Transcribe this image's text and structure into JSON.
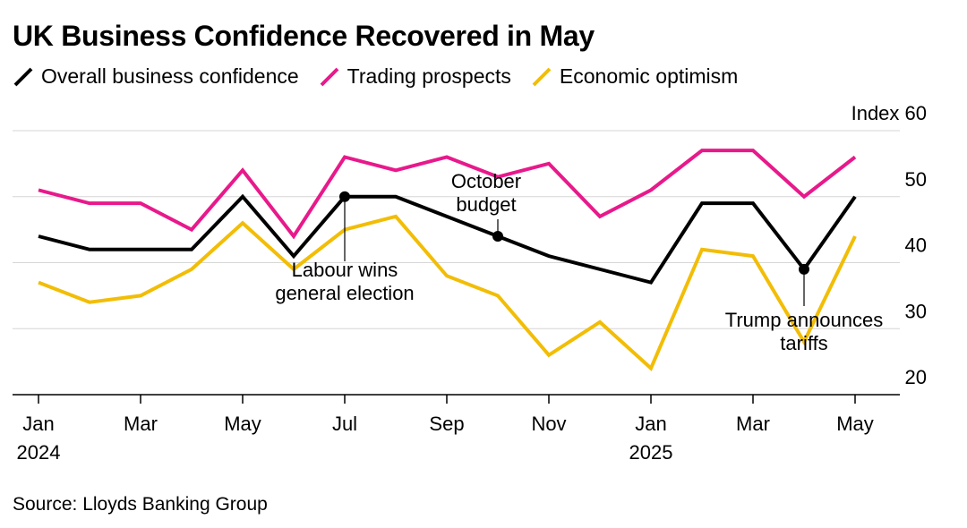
{
  "header": {
    "title": "UK Business Confidence Recovered in May"
  },
  "footer": {
    "source": "Source: Lloyds Banking Group"
  },
  "chart_data": {
    "type": "line",
    "title": "UK Business Confidence Recovered in May",
    "x": [
      "2024-01",
      "2024-02",
      "2024-03",
      "2024-04",
      "2024-05",
      "2024-06",
      "2024-07",
      "2024-08",
      "2024-09",
      "2024-10",
      "2024-11",
      "2024-12",
      "2025-01",
      "2025-02",
      "2025-03",
      "2025-04",
      "2025-05"
    ],
    "x_tick_labels": [
      {
        "month": "Jan",
        "year": "2024"
      },
      {
        "month": "Mar",
        "year": ""
      },
      {
        "month": "May",
        "year": ""
      },
      {
        "month": "Jul",
        "year": ""
      },
      {
        "month": "Sep",
        "year": ""
      },
      {
        "month": "Nov",
        "year": ""
      },
      {
        "month": "Jan",
        "year": "2025"
      },
      {
        "month": "Mar",
        "year": ""
      },
      {
        "month": "May",
        "year": ""
      }
    ],
    "y_unit_label": "Index",
    "y_ticks": [
      20,
      30,
      40,
      50,
      60
    ],
    "ylim": [
      20,
      60
    ],
    "grid": true,
    "legend_position": "top-left",
    "series": [
      {
        "name": "Overall business confidence",
        "color": "#000000",
        "values": [
          44,
          42,
          42,
          42,
          50,
          41,
          50,
          50,
          47,
          44,
          41,
          39,
          37,
          49,
          49,
          39,
          50
        ]
      },
      {
        "name": "Trading prospects",
        "color": "#e8198b",
        "values": [
          51,
          49,
          49,
          45,
          54,
          44,
          56,
          54,
          56,
          53,
          55,
          47,
          51,
          57,
          57,
          50,
          56
        ]
      },
      {
        "name": "Economic optimism",
        "color": "#f2bd05",
        "values": [
          37,
          34,
          35,
          39,
          46,
          39,
          45,
          47,
          38,
          35,
          26,
          31,
          24,
          42,
          41,
          28,
          44
        ]
      }
    ],
    "annotations": [
      {
        "label": "Labour wins general election",
        "lines": [
          "Labour wins",
          "general election"
        ],
        "x": "2024-07",
        "y": 50
      },
      {
        "label": "October budget",
        "lines": [
          "October",
          "budget"
        ],
        "x": "2024-10",
        "y": 44
      },
      {
        "label": "Trump announces tariffs",
        "lines": [
          "Trump announces",
          "tariffs"
        ],
        "x": "2025-04",
        "y": 39
      }
    ]
  }
}
